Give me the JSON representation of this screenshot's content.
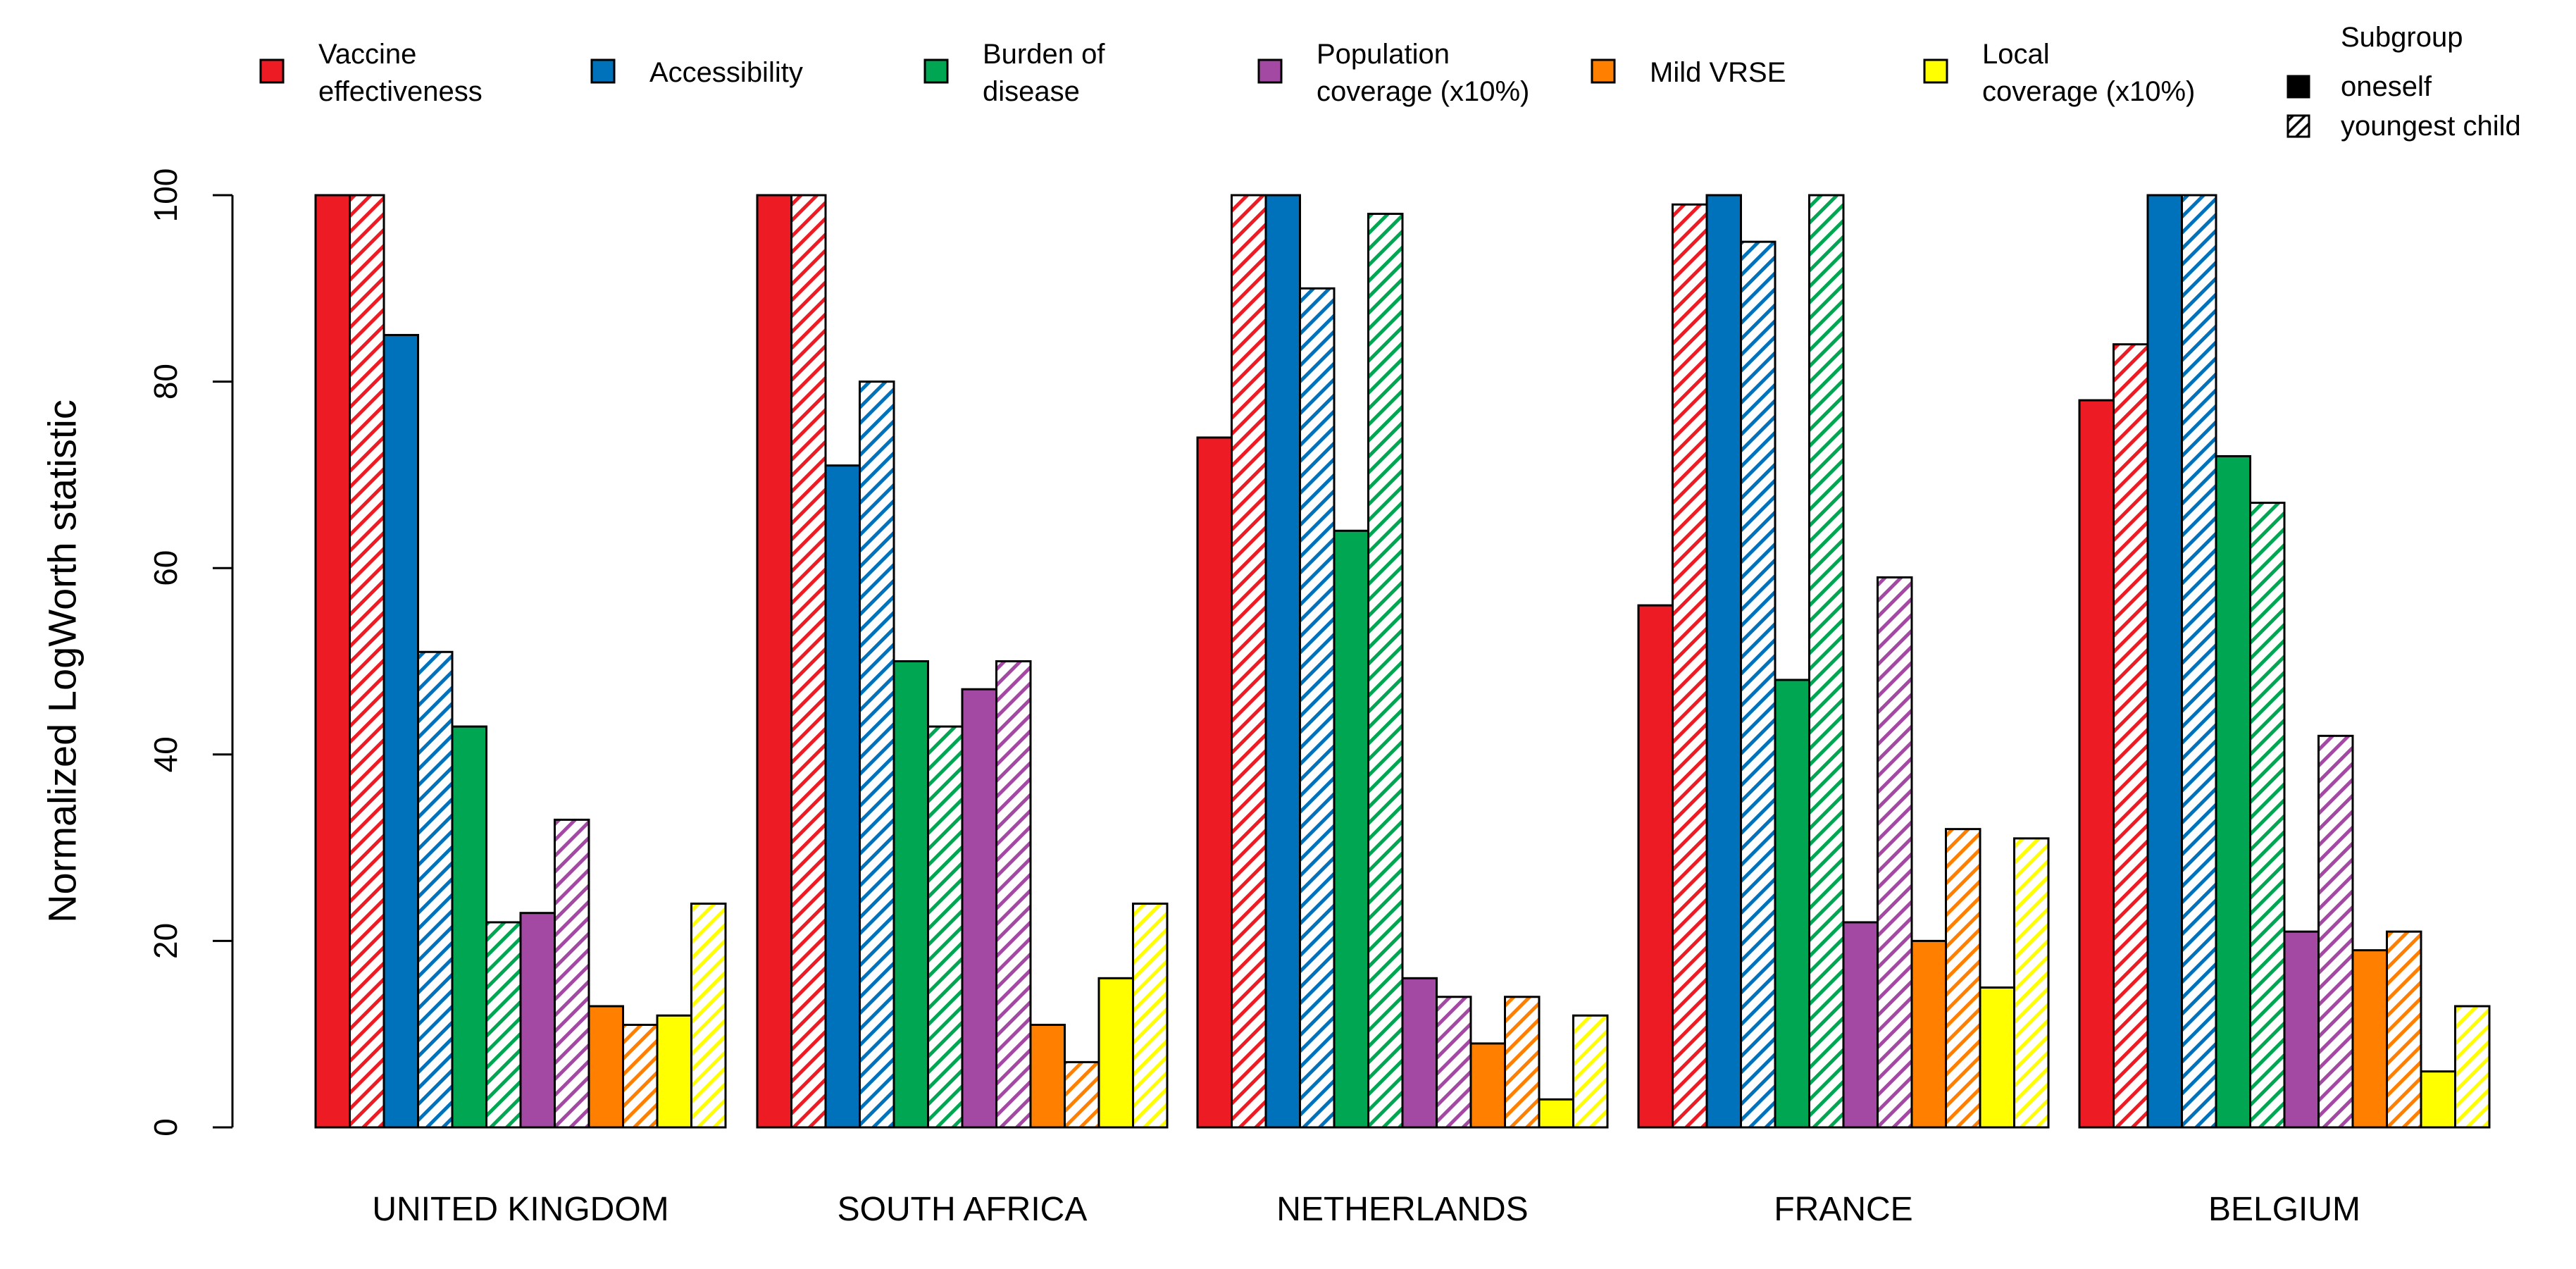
{
  "chart_data": {
    "type": "bar",
    "title": "",
    "xlabel": "",
    "ylabel": "Normalized LogWorth statistic",
    "ylim": [
      0,
      100
    ],
    "yticks": [
      0,
      20,
      40,
      60,
      80,
      100
    ],
    "grid": false,
    "legend_position": "top",
    "categories": [
      "UNITED KINGDOM",
      "SOUTH AFRICA",
      "NETHERLANDS",
      "FRANCE",
      "BELGIUM"
    ],
    "attributes": [
      {
        "name": "Vaccine effectiveness",
        "lines": [
          "Vaccine",
          "effectiveness"
        ],
        "color": "#ED1C24"
      },
      {
        "name": "Accessibility",
        "lines": [
          "Accessibility"
        ],
        "color": "#0072BC"
      },
      {
        "name": "Burden of disease",
        "lines": [
          "Burden of",
          "disease"
        ],
        "color": "#00A651"
      },
      {
        "name": "Population coverage (x10%)",
        "lines": [
          "Population",
          "coverage (x10%)"
        ],
        "color": "#A349A4"
      },
      {
        "name": "Mild VRSE",
        "lines": [
          "Mild VRSE"
        ],
        "color": "#FF7F00"
      },
      {
        "name": "Local coverage (x10%)",
        "lines": [
          "Local",
          "coverage (x10%)"
        ],
        "color": "#FFFF00"
      }
    ],
    "subgroup_legend": {
      "title": "Subgroup",
      "items": [
        {
          "name": "oneself",
          "fill": "solid"
        },
        {
          "name": "youngest child",
          "fill": "hatched"
        }
      ]
    },
    "series": [
      {
        "name": "Vaccine effectiveness - oneself",
        "values": [
          100,
          100,
          74,
          56,
          78
        ]
      },
      {
        "name": "Vaccine effectiveness - youngest child",
        "values": [
          100,
          100,
          100,
          99,
          84
        ]
      },
      {
        "name": "Accessibility - oneself",
        "values": [
          85,
          71,
          100,
          100,
          100
        ]
      },
      {
        "name": "Accessibility - youngest child",
        "values": [
          51,
          80,
          90,
          95,
          100
        ]
      },
      {
        "name": "Burden of disease - oneself",
        "values": [
          43,
          50,
          64,
          48,
          72
        ]
      },
      {
        "name": "Burden of disease - youngest child",
        "values": [
          22,
          43,
          98,
          100,
          67
        ]
      },
      {
        "name": "Population coverage (x10%) - oneself",
        "values": [
          23,
          47,
          16,
          22,
          21
        ]
      },
      {
        "name": "Population coverage (x10%) - youngest child",
        "values": [
          33,
          50,
          14,
          59,
          42
        ]
      },
      {
        "name": "Mild VRSE - oneself",
        "values": [
          13,
          11,
          9,
          20,
          19
        ]
      },
      {
        "name": "Mild VRSE - youngest child",
        "values": [
          11,
          7,
          14,
          32,
          21
        ]
      },
      {
        "name": "Local coverage (x10%) - oneself",
        "values": [
          12,
          16,
          3,
          15,
          6
        ]
      },
      {
        "name": "Local coverage (x10%) - youngest child",
        "values": [
          24,
          24,
          12,
          31,
          13
        ]
      }
    ]
  }
}
